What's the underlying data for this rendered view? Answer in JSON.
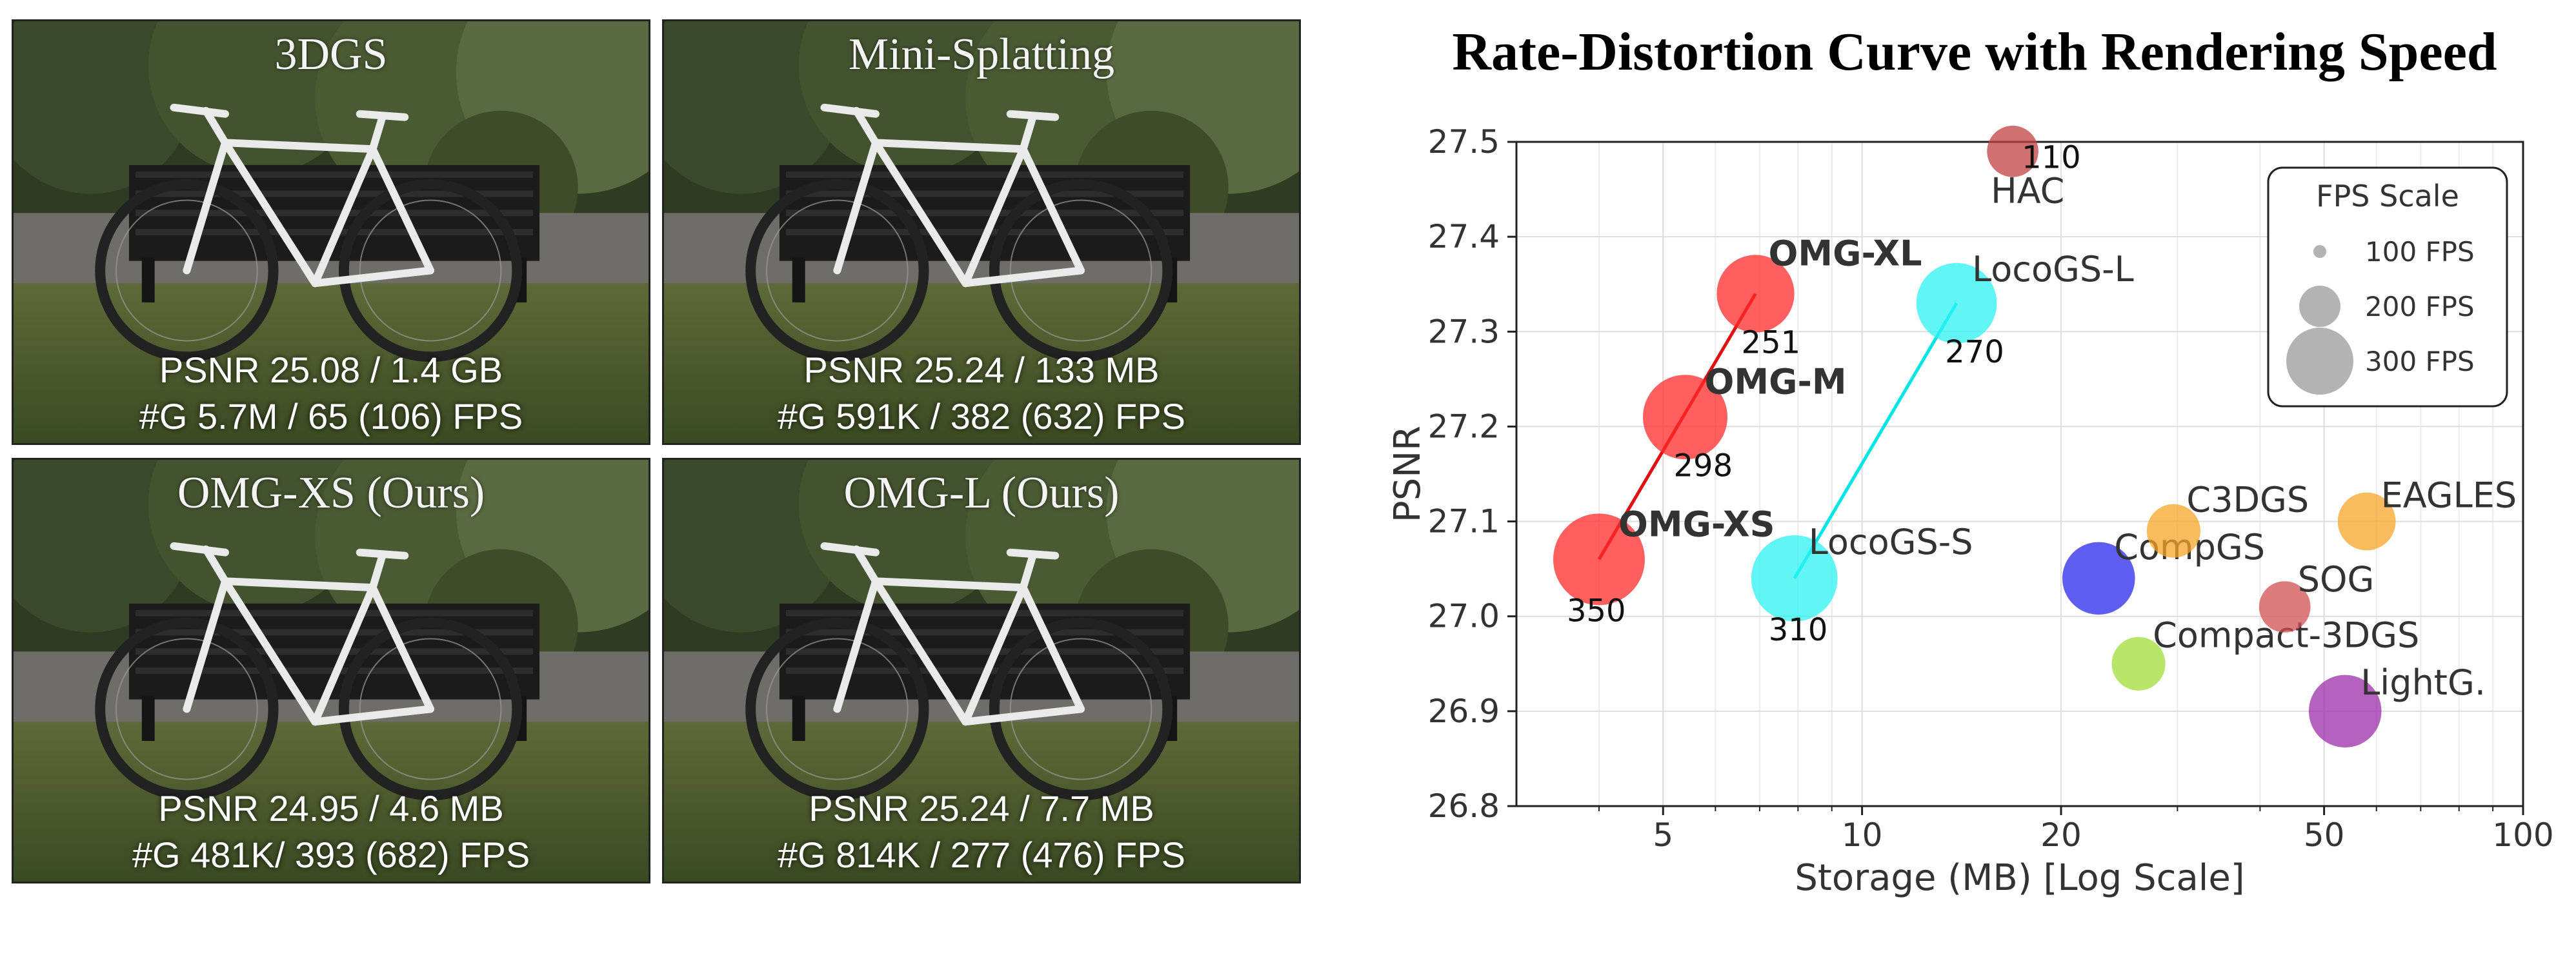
{
  "panels": [
    {
      "title": "3DGS",
      "stat_line1": "PSNR 25.08 / 1.4 GB",
      "stat_line2": "#G 5.7M / 65 (106) FPS"
    },
    {
      "title": "Mini-Splatting",
      "stat_line1": "PSNR 25.24 / 133 MB",
      "stat_line2": "#G 591K / 382 (632) FPS"
    },
    {
      "title": "OMG-XS (Ours)",
      "stat_line1": "PSNR 24.95 / 4.6 MB",
      "stat_line2": "#G 481K/ 393 (682) FPS"
    },
    {
      "title": "OMG-L (Ours)",
      "stat_line1": "PSNR 25.24 / 7.7 MB",
      "stat_line2": "#G 814K / 277 (476) FPS"
    }
  ],
  "chart_data": {
    "type": "scatter",
    "title": "Rate-Distortion Curve with Rendering Speed",
    "xlabel": "Storage (MB) [Log Scale]",
    "ylabel": "PSNR",
    "xscale": "log",
    "xlim": [
      3,
      100
    ],
    "ylim": [
      26.8,
      27.5
    ],
    "xticks": [
      5,
      10,
      20,
      50,
      100
    ],
    "yticks": [
      26.8,
      26.9,
      27.0,
      27.1,
      27.2,
      27.3,
      27.4,
      27.5
    ],
    "grid": true,
    "points": [
      {
        "name": "OMG-XS",
        "x": 4.0,
        "y": 27.06,
        "fps": 350,
        "fps_label": "350",
        "color": "#ff2a2a",
        "bold": true
      },
      {
        "name": "OMG-M",
        "x": 5.4,
        "y": 27.21,
        "fps": 298,
        "fps_label": "298",
        "color": "#ff2a2a",
        "bold": true
      },
      {
        "name": "OMG-XL",
        "x": 6.9,
        "y": 27.34,
        "fps": 251,
        "fps_label": "251",
        "color": "#ff2a2a",
        "bold": true
      },
      {
        "name": "LocoGS-S",
        "x": 7.9,
        "y": 27.04,
        "fps": 310,
        "fps_label": "310",
        "color": "#2ef2f2",
        "bold": false
      },
      {
        "name": "LocoGS-L",
        "x": 13.9,
        "y": 27.33,
        "fps": 270,
        "fps_label": "270",
        "color": "#2ef2f2",
        "bold": false
      },
      {
        "name": "HAC",
        "x": 16.9,
        "y": 27.49,
        "fps": 110,
        "fps_label": "110",
        "color": "#c04040",
        "bold": false
      },
      {
        "name": "CompGS",
        "x": 22.8,
        "y": 27.04,
        "fps": 220,
        "fps_label": "",
        "color": "#2828ee",
        "bold": false
      },
      {
        "name": "C3DGS",
        "x": 29.6,
        "y": 27.09,
        "fps": 120,
        "fps_label": "",
        "color": "#f6a52a",
        "bold": false
      },
      {
        "name": "Compact-3DGS",
        "x": 26.2,
        "y": 26.95,
        "fps": 120,
        "fps_label": "",
        "color": "#a0dd3a",
        "bold": false
      },
      {
        "name": "SOG",
        "x": 43.6,
        "y": 27.01,
        "fps": 110,
        "fps_label": "",
        "color": "#d05050",
        "bold": false
      },
      {
        "name": "EAGLES",
        "x": 58.0,
        "y": 27.1,
        "fps": 140,
        "fps_label": "",
        "color": "#f6a52a",
        "bold": false
      },
      {
        "name": "LightG.",
        "x": 53.8,
        "y": 26.9,
        "fps": 220,
        "fps_label": "",
        "color": "#9b2ea8",
        "bold": false
      }
    ],
    "lines": [
      {
        "name": "OMG",
        "x": [
          4.0,
          6.9
        ],
        "y": [
          27.06,
          27.34
        ],
        "color": "#e01010"
      },
      {
        "name": "LocoGS",
        "x": [
          7.9,
          13.9
        ],
        "y": [
          27.04,
          27.33
        ],
        "color": "#00e5e5"
      }
    ],
    "legend": {
      "title": "FPS Scale",
      "placement": "top-right",
      "items": [
        {
          "label": "100 FPS",
          "fps": 100
        },
        {
          "label": "200 FPS",
          "fps": 200
        },
        {
          "label": "300 FPS",
          "fps": 300
        }
      ]
    }
  }
}
